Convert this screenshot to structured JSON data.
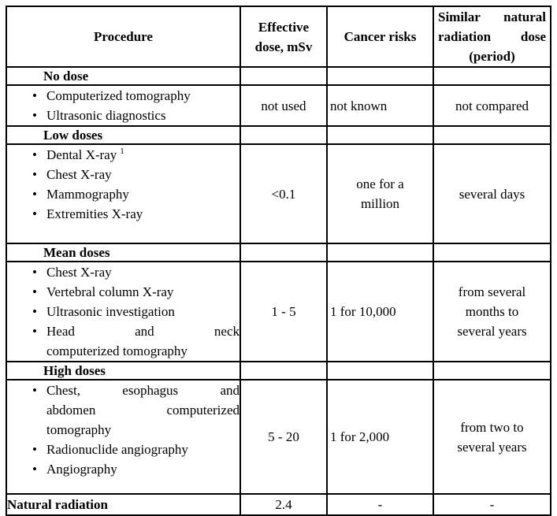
{
  "header": {
    "procedure": "Procedure",
    "effective_dose": [
      "Effective",
      "dose, mSv"
    ],
    "cancer_risks": "Cancer risks",
    "similar_natural": [
      "Similar natural",
      "radiation dose",
      "(period)"
    ]
  },
  "sections": [
    {
      "band_label": "No dose",
      "items": [
        {
          "lines": [
            "Computerized tomography"
          ]
        },
        {
          "lines": [
            "Ultrasonic diagnostics"
          ]
        }
      ],
      "effective_dose": "not used",
      "cancer_risk": [
        "not known"
      ],
      "period": [
        "not compared"
      ]
    },
    {
      "band_label": "Low doses",
      "items": [
        {
          "lines": [
            "Dental X-ray"
          ],
          "superscript": "1"
        },
        {
          "lines": [
            "Chest X-ray"
          ]
        },
        {
          "lines": [
            "Mammography"
          ]
        },
        {
          "lines": [
            "Extremities X-ray"
          ]
        }
      ],
      "effective_dose": "<0.1",
      "cancer_risk": [
        "one for a",
        "million"
      ],
      "period": [
        "several days"
      ]
    },
    {
      "band_label": "Mean doses",
      "items": [
        {
          "lines": [
            "Chest X-ray"
          ]
        },
        {
          "lines": [
            "Vertebral column X-ray"
          ]
        },
        {
          "lines": [
            "Ultrasonic investigation"
          ]
        },
        {
          "lines": [
            "Head and neck",
            "computerized tomography"
          ]
        }
      ],
      "effective_dose": "1 - 5",
      "cancer_risk": [
        "1 for 10,000"
      ],
      "period": [
        "from several",
        "months to",
        "several years"
      ]
    },
    {
      "band_label": "High doses",
      "items": [
        {
          "lines": [
            "Chest, esophagus and",
            "abdomen computerized",
            "tomography"
          ]
        },
        {
          "lines": [
            "Radionuclide angiography"
          ]
        },
        {
          "lines": [
            "Angiography"
          ]
        }
      ],
      "effective_dose": "5 - 20",
      "cancer_risk": [
        "1 for 2,000"
      ],
      "period": [
        "from two to",
        "several years"
      ]
    }
  ],
  "footer": {
    "label": "Natural radiation",
    "effective_dose": "2.4",
    "cancer_risk": "-",
    "period": "-"
  }
}
